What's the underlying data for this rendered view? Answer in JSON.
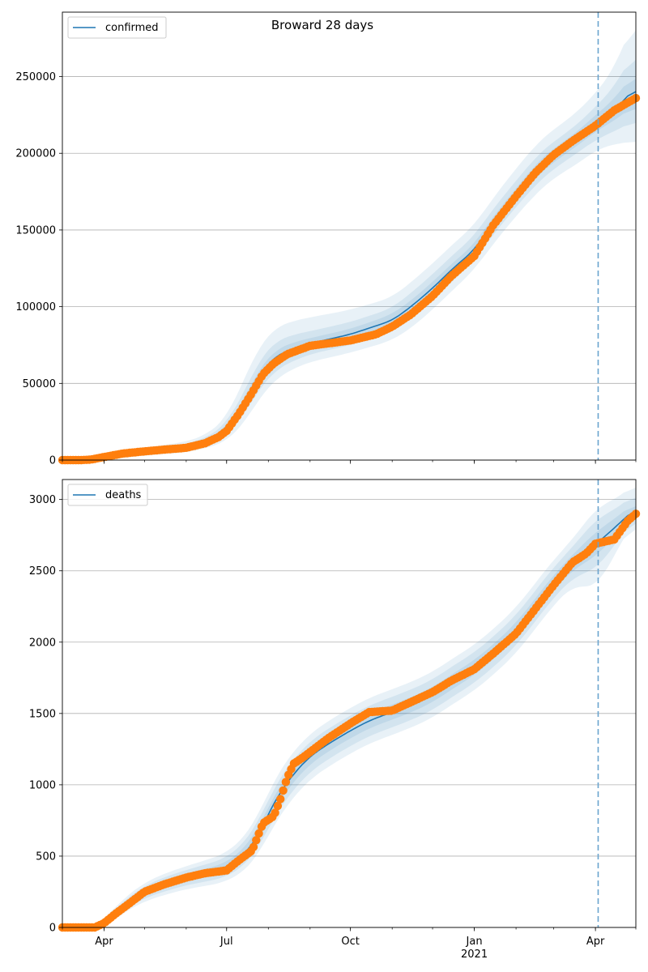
{
  "title": "Broward 28 days",
  "colors": {
    "model": "#1f77b4",
    "observed": "#ff7f0e",
    "band": "#1f77b4",
    "grid": "#b0b0b0",
    "forecast_line": "#6aa4cf"
  },
  "x_axis": {
    "start": "2020-03-01",
    "end": "2021-05-01",
    "ticks": [
      {
        "date": "2020-04-01",
        "label": "Apr",
        "sublabel": ""
      },
      {
        "date": "2020-07-01",
        "label": "Jul",
        "sublabel": ""
      },
      {
        "date": "2020-10-01",
        "label": "Oct",
        "sublabel": ""
      },
      {
        "date": "2021-01-01",
        "label": "Jan",
        "sublabel": "2021"
      },
      {
        "date": "2021-04-01",
        "label": "Apr",
        "sublabel": ""
      }
    ],
    "forecast_start": "2021-04-03"
  },
  "chart_data": [
    {
      "type": "line",
      "legend": "confirmed",
      "legend_position": "top-left",
      "grid": true,
      "ylim": [
        0,
        292000
      ],
      "yticks": [
        "0",
        "50000",
        "100000",
        "150000",
        "200000",
        "250000"
      ],
      "model": {
        "name": "confirmed",
        "x": [
          "2020-03-01",
          "2020-04-01",
          "2020-05-01",
          "2020-06-01",
          "2020-06-15",
          "2020-07-01",
          "2020-07-15",
          "2020-07-25",
          "2020-08-05",
          "2020-08-20",
          "2020-09-01",
          "2020-10-01",
          "2020-11-01",
          "2020-11-15",
          "2020-12-01",
          "2020-12-15",
          "2021-01-01",
          "2021-01-15",
          "2021-02-01",
          "2021-02-15",
          "2021-03-01",
          "2021-03-15",
          "2021-04-03",
          "2021-04-15",
          "2021-05-01"
        ],
        "y": [
          0,
          1500,
          5500,
          8500,
          11500,
          19000,
          38000,
          55000,
          67000,
          73000,
          76000,
          82000,
          91000,
          100000,
          112000,
          124000,
          137000,
          155000,
          173000,
          188000,
          199000,
          207000,
          221000,
          228000,
          243000
        ],
        "bands": [
          {
            "lower": [
              0,
              0,
              3000,
              5000,
              7500,
              12000,
              25000,
              40000,
              52000,
              60000,
              64000,
              70000,
              78000,
              86000,
              98000,
              110000,
              124000,
              141000,
              159000,
              173000,
              184000,
              191000,
              203000,
              206000,
              208000
            ],
            "upper": [
              0,
              3000,
              8000,
              12000,
              16000,
              27000,
              55000,
              74000,
              86000,
              91000,
              93000,
              98000,
              106000,
              116000,
              128000,
              140000,
              153000,
              171000,
              190000,
              205000,
              216000,
              224000,
              241000,
              255000,
              290000
            ]
          },
          {
            "lower": [
              0,
              400,
              4000,
              6500,
              9200,
              15000,
              31000,
              46000,
              58000,
              65000,
              69000,
              75000,
              83000,
              92000,
              104000,
              116000,
              130000,
              147000,
              165000,
              179000,
              190000,
              198000,
              210000,
              214000,
              222000
            ],
            "upper": [
              0,
              2500,
              7000,
              10500,
              14000,
              23500,
              46000,
              65000,
              77000,
              82000,
              84000,
              90000,
              99000,
              109000,
              121000,
              133000,
              146000,
              164000,
              182000,
              197000,
              208000,
              216000,
              232000,
              243000,
              268000
            ]
          },
          {
            "lower": [
              0,
              800,
              4700,
              7500,
              10300,
              17000,
              34500,
              50500,
              62500,
              69000,
              72500,
              78500,
              87000,
              96000,
              108000,
              120000,
              133500,
              151000,
              169000,
              183500,
              194500,
              202500,
              215500,
              221000,
              232000
            ],
            "upper": [
              0,
              2000,
              6300,
              9500,
              12700,
              21000,
              41500,
              59500,
              71500,
              77000,
              79500,
              85500,
              95000,
              104000,
              116000,
              128000,
              140500,
              159000,
              177000,
              192500,
              203500,
              211500,
              226500,
              235000,
              254000
            ]
          }
        ]
      },
      "observed": {
        "name": "confirmed observed",
        "x": [
          "2020-03-01",
          "2020-03-15",
          "2020-03-22",
          "2020-04-01",
          "2020-04-15",
          "2020-05-01",
          "2020-05-15",
          "2020-06-01",
          "2020-06-15",
          "2020-06-25",
          "2020-07-01",
          "2020-07-10",
          "2020-07-20",
          "2020-07-28",
          "2020-08-05",
          "2020-08-15",
          "2020-09-01",
          "2020-10-01",
          "2020-10-20",
          "2020-11-01",
          "2020-11-15",
          "2020-12-01",
          "2020-12-15",
          "2021-01-01",
          "2021-01-15",
          "2021-02-01",
          "2021-02-15",
          "2021-03-01",
          "2021-03-15",
          "2021-04-01",
          "2021-04-15",
          "2021-05-01"
        ],
        "y": [
          0,
          0,
          300,
          2000,
          4300,
          5700,
          6800,
          8000,
          11000,
          15000,
          19000,
          30000,
          44000,
          56000,
          63000,
          69000,
          74500,
          78000,
          82000,
          87000,
          95000,
          107000,
          120000,
          133000,
          153000,
          172000,
          187000,
          199000,
          208000,
          218000,
          228000,
          236000
        ]
      }
    },
    {
      "type": "line",
      "legend": "deaths",
      "legend_position": "top-left",
      "grid": true,
      "ylim": [
        0,
        3140
      ],
      "yticks": [
        "0",
        "500",
        "1000",
        "1500",
        "2000",
        "2500",
        "3000"
      ],
      "model": {
        "name": "deaths",
        "x": [
          "2020-03-01",
          "2020-03-25",
          "2020-04-01",
          "2020-04-15",
          "2020-05-01",
          "2020-05-15",
          "2020-06-01",
          "2020-06-15",
          "2020-07-01",
          "2020-07-15",
          "2020-07-25",
          "2020-08-01",
          "2020-08-10",
          "2020-08-20",
          "2020-09-01",
          "2020-09-15",
          "2020-10-01",
          "2020-10-15",
          "2020-11-01",
          "2020-11-15",
          "2020-12-01",
          "2020-12-15",
          "2021-01-01",
          "2021-01-15",
          "2021-02-01",
          "2021-02-15",
          "2021-03-01",
          "2021-03-15",
          "2021-04-03",
          "2021-04-15",
          "2021-05-01"
        ],
        "y": [
          0,
          0,
          30,
          150,
          250,
          300,
          350,
          380,
          420,
          520,
          650,
          800,
          950,
          1080,
          1200,
          1290,
          1380,
          1450,
          1510,
          1560,
          1630,
          1720,
          1820,
          1930,
          2080,
          2250,
          2420,
          2560,
          2700,
          2800,
          2940
        ],
        "bands": [
          {
            "lower": [
              0,
              0,
              0,
              100,
              185,
              225,
              270,
              290,
              320,
              400,
              510,
              650,
              790,
              920,
              1040,
              1130,
              1220,
              1290,
              1350,
              1400,
              1470,
              1560,
              1660,
              1770,
              1920,
              2090,
              2260,
              2400,
              2380,
              2620,
              2860
            ],
            "upper": [
              0,
              0,
              60,
              200,
              315,
              375,
              430,
              470,
              520,
              640,
              790,
              950,
              1110,
              1240,
              1360,
              1450,
              1540,
              1610,
              1670,
              1720,
              1790,
              1880,
              1980,
              2090,
              2240,
              2410,
              2580,
              2720,
              2960,
              2990,
              3120
            ]
          },
          {
            "lower": [
              0,
              0,
              10,
              117,
              207,
              250,
              297,
              320,
              353,
              440,
              557,
              700,
              843,
              973,
              1093,
              1183,
              1273,
              1343,
              1403,
              1453,
              1523,
              1613,
              1713,
              1823,
              1973,
              2143,
              2313,
              2453,
              2520,
              2680,
              2890
            ],
            "upper": [
              0,
              0,
              50,
              183,
              293,
              350,
              403,
              440,
              487,
              600,
              743,
              900,
              1057,
              1187,
              1307,
              1397,
              1487,
              1557,
              1617,
              1667,
              1737,
              1827,
              1927,
              2037,
              2187,
              2357,
              2527,
              2667,
              2880,
              2920,
              3050
            ]
          },
          {
            "lower": [
              0,
              0,
              20,
              133,
              228,
              275,
              323,
              350,
              387,
              480,
              603,
              750,
              897,
              1027,
              1147,
              1237,
              1327,
              1397,
              1457,
              1507,
              1577,
              1667,
              1767,
              1877,
              2027,
              2197,
              2367,
              2507,
              2610,
              2740,
              2910
            ],
            "upper": [
              0,
              0,
              40,
              167,
              272,
              325,
              377,
              410,
              453,
              560,
              697,
              850,
              1003,
              1133,
              1253,
              1343,
              1433,
              1503,
              1563,
              1613,
              1683,
              1773,
              1873,
              1983,
              2133,
              2303,
              2473,
              2613,
              2790,
              2860,
              2990
            ]
          }
        ]
      },
      "observed": {
        "name": "deaths observed",
        "x": [
          "2020-03-01",
          "2020-03-25",
          "2020-04-01",
          "2020-04-10",
          "2020-04-20",
          "2020-05-01",
          "2020-05-15",
          "2020-06-01",
          "2020-06-15",
          "2020-07-01",
          "2020-07-10",
          "2020-07-20",
          "2020-07-28",
          "2020-08-05",
          "2020-08-10",
          "2020-08-15",
          "2020-08-20",
          "2020-08-25",
          "2020-09-01",
          "2020-09-15",
          "2020-10-01",
          "2020-10-15",
          "2020-11-01",
          "2020-11-15",
          "2020-12-01",
          "2020-12-15",
          "2021-01-01",
          "2021-01-15",
          "2021-02-01",
          "2021-02-15",
          "2021-03-01",
          "2021-03-15",
          "2021-03-25",
          "2021-04-01",
          "2021-04-15",
          "2021-04-25",
          "2021-05-01"
        ],
        "y": [
          0,
          0,
          30,
          100,
          170,
          250,
          300,
          350,
          380,
          400,
          470,
          540,
          730,
          780,
          900,
          1050,
          1150,
          1180,
          1230,
          1330,
          1430,
          1510,
          1520,
          1580,
          1650,
          1730,
          1810,
          1920,
          2060,
          2230,
          2400,
          2560,
          2620,
          2690,
          2720,
          2850,
          2900
        ]
      }
    }
  ]
}
